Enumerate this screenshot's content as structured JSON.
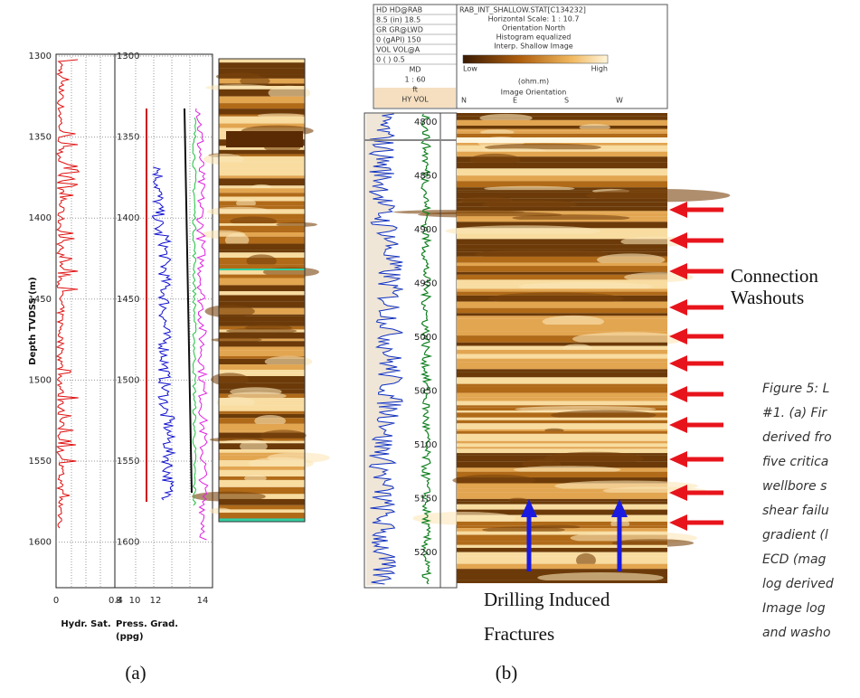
{
  "panel_a": {
    "depth_axis_label": "Depth TVDSS (m)",
    "track1": {
      "depth_ticks": [
        "1300",
        "1350",
        "1400",
        "1450",
        "1500",
        "1550",
        "1600"
      ],
      "x_ticks": [
        "0",
        "0.4"
      ],
      "label": "Hydr. Sat."
    },
    "track2": {
      "depth_ticks": [
        "1300",
        "1350",
        "1400",
        "1450",
        "1500",
        "1550",
        "1600"
      ],
      "x_ticks": [
        "8",
        "10",
        "12",
        "14"
      ],
      "label": [
        "Press. Grad.",
        "(ppg)"
      ]
    },
    "panel_label": "(a)"
  },
  "panel_b": {
    "header_left": [
      "HD HD@RAB",
      "8.5   (in)   18.5",
      "GR GR@LWD",
      "0   (gAPI)   150",
      "VOL VOL@A",
      "0    (  )    0.5",
      "MD",
      "1 : 60",
      "ft",
      "HY VOL"
    ],
    "header_right": {
      "lines": [
        "RAB_INT_SHALLOW.STAT[C134232]",
        "Horizontal Scale: 1 : 10.7",
        "Orientation North",
        "Histogram equalized",
        "Interp. Shallow Image"
      ],
      "low": "Low",
      "high": "High",
      "unit": "(ohm.m)",
      "orientation": "Image Orientation",
      "directions": [
        "N",
        "E",
        "S",
        "W"
      ]
    },
    "depth_ticks": [
      "4800",
      "4850",
      "4900",
      "4950",
      "5000",
      "5050",
      "5100",
      "5150",
      "5200"
    ],
    "washouts": [
      "Connection",
      "Washouts"
    ],
    "fractures": [
      "Drilling Induced",
      "Fractures"
    ],
    "panel_label": "(b)"
  },
  "caption": [
    "Figure 5: L",
    "#1. (a) Fir",
    "derived fro",
    "five critica",
    "wellbore s",
    "shear failu",
    "gradient (l",
    "ECD (mag",
    "log derived",
    "Image log",
    "and washo"
  ]
}
